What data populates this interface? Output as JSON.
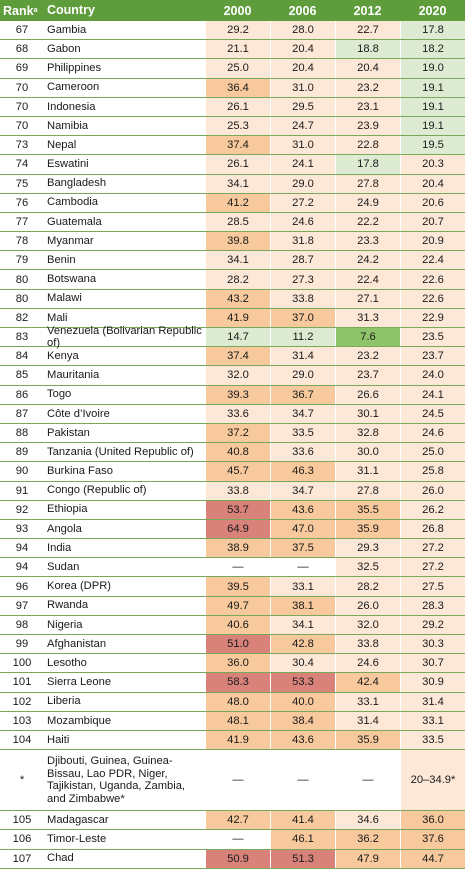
{
  "table": {
    "headers": {
      "rank": "Rank",
      "rank_sup": "a",
      "country": "Country",
      "years": [
        "2000",
        "2006",
        "2012",
        "2020"
      ]
    },
    "palette": {
      "header_bg": "#5e9c3c",
      "row_rule": "#78a85a",
      "very_low": "#8fc46a",
      "low": "#dcebd2",
      "moderate": "#fde8d8",
      "serious": "#f7c99c",
      "alarming": "#d9827a",
      "missing": "#ffffff"
    },
    "rows": [
      {
        "rank": "67",
        "country": "Gambia",
        "values": [
          "29.2",
          "28.0",
          "22.7",
          "17.8"
        ],
        "levels": [
          "moderate",
          "moderate",
          "moderate",
          "low"
        ]
      },
      {
        "rank": "68",
        "country": "Gabon",
        "values": [
          "21.1",
          "20.4",
          "18.8",
          "18.2"
        ],
        "levels": [
          "moderate",
          "moderate",
          "low",
          "low"
        ]
      },
      {
        "rank": "69",
        "country": "Philippines",
        "values": [
          "25.0",
          "20.4",
          "20.4",
          "19.0"
        ],
        "levels": [
          "moderate",
          "moderate",
          "moderate",
          "low"
        ]
      },
      {
        "rank": "70",
        "country": "Cameroon",
        "values": [
          "36.4",
          "31.0",
          "23.2",
          "19.1"
        ],
        "levels": [
          "serious",
          "moderate",
          "moderate",
          "low"
        ]
      },
      {
        "rank": "70",
        "country": "Indonesia",
        "values": [
          "26.1",
          "29.5",
          "23.1",
          "19.1"
        ],
        "levels": [
          "moderate",
          "moderate",
          "moderate",
          "low"
        ]
      },
      {
        "rank": "70",
        "country": "Namibia",
        "values": [
          "25.3",
          "24.7",
          "23.9",
          "19.1"
        ],
        "levels": [
          "moderate",
          "moderate",
          "moderate",
          "low"
        ]
      },
      {
        "rank": "73",
        "country": "Nepal",
        "values": [
          "37.4",
          "31.0",
          "22.8",
          "19.5"
        ],
        "levels": [
          "serious",
          "moderate",
          "moderate",
          "low"
        ]
      },
      {
        "rank": "74",
        "country": "Eswatini",
        "values": [
          "26.1",
          "24.1",
          "17.8",
          "20.3"
        ],
        "levels": [
          "moderate",
          "moderate",
          "low",
          "moderate"
        ]
      },
      {
        "rank": "75",
        "country": "Bangladesh",
        "values": [
          "34.1",
          "29.0",
          "27.8",
          "20.4"
        ],
        "levels": [
          "moderate",
          "moderate",
          "moderate",
          "moderate"
        ]
      },
      {
        "rank": "76",
        "country": "Cambodia",
        "values": [
          "41.2",
          "27.2",
          "24.9",
          "20.6"
        ],
        "levels": [
          "serious",
          "moderate",
          "moderate",
          "moderate"
        ]
      },
      {
        "rank": "77",
        "country": "Guatemala",
        "values": [
          "28.5",
          "24.6",
          "22.2",
          "20.7"
        ],
        "levels": [
          "moderate",
          "moderate",
          "moderate",
          "moderate"
        ]
      },
      {
        "rank": "78",
        "country": "Myanmar",
        "values": [
          "39.8",
          "31.8",
          "23.3",
          "20.9"
        ],
        "levels": [
          "serious",
          "moderate",
          "moderate",
          "moderate"
        ]
      },
      {
        "rank": "79",
        "country": "Benin",
        "values": [
          "34.1",
          "28.7",
          "24.2",
          "22.4"
        ],
        "levels": [
          "moderate",
          "moderate",
          "moderate",
          "moderate"
        ]
      },
      {
        "rank": "80",
        "country": "Botswana",
        "values": [
          "28.2",
          "27.3",
          "22.4",
          "22.6"
        ],
        "levels": [
          "moderate",
          "moderate",
          "moderate",
          "moderate"
        ]
      },
      {
        "rank": "80",
        "country": "Malawi",
        "values": [
          "43.2",
          "33.8",
          "27.1",
          "22.6"
        ],
        "levels": [
          "serious",
          "moderate",
          "moderate",
          "moderate"
        ]
      },
      {
        "rank": "82",
        "country": "Mali",
        "values": [
          "41.9",
          "37.0",
          "31.3",
          "22.9"
        ],
        "levels": [
          "serious",
          "serious",
          "moderate",
          "moderate"
        ]
      },
      {
        "rank": "83",
        "country": "Venezuela (Bolivarian Republic of)",
        "values": [
          "14.7",
          "11.2",
          "7.6",
          "23.5"
        ],
        "levels": [
          "low",
          "low",
          "very_low",
          "moderate"
        ]
      },
      {
        "rank": "84",
        "country": "Kenya",
        "values": [
          "37.4",
          "31.4",
          "23.2",
          "23.7"
        ],
        "levels": [
          "serious",
          "moderate",
          "moderate",
          "moderate"
        ]
      },
      {
        "rank": "85",
        "country": "Mauritania",
        "values": [
          "32.0",
          "29.0",
          "23.7",
          "24.0"
        ],
        "levels": [
          "moderate",
          "moderate",
          "moderate",
          "moderate"
        ]
      },
      {
        "rank": "86",
        "country": "Togo",
        "values": [
          "39.3",
          "36.7",
          "26.6",
          "24.1"
        ],
        "levels": [
          "serious",
          "serious",
          "moderate",
          "moderate"
        ]
      },
      {
        "rank": "87",
        "country": "Côte d’Ivoire",
        "values": [
          "33.6",
          "34.7",
          "30.1",
          "24.5"
        ],
        "levels": [
          "moderate",
          "moderate",
          "moderate",
          "moderate"
        ]
      },
      {
        "rank": "88",
        "country": "Pakistan",
        "values": [
          "37.2",
          "33.5",
          "32.8",
          "24.6"
        ],
        "levels": [
          "serious",
          "moderate",
          "moderate",
          "moderate"
        ]
      },
      {
        "rank": "89",
        "country": "Tanzania (United Republic of)",
        "values": [
          "40.8",
          "33.6",
          "30.0",
          "25.0"
        ],
        "levels": [
          "serious",
          "moderate",
          "moderate",
          "moderate"
        ]
      },
      {
        "rank": "90",
        "country": "Burkina Faso",
        "values": [
          "45.7",
          "46.3",
          "31.1",
          "25.8"
        ],
        "levels": [
          "serious",
          "serious",
          "moderate",
          "moderate"
        ]
      },
      {
        "rank": "91",
        "country": "Congo (Republic of)",
        "values": [
          "33.8",
          "34.7",
          "27.8",
          "26.0"
        ],
        "levels": [
          "moderate",
          "moderate",
          "moderate",
          "moderate"
        ]
      },
      {
        "rank": "92",
        "country": "Ethiopia",
        "values": [
          "53.7",
          "43.6",
          "35.5",
          "26.2"
        ],
        "levels": [
          "alarming",
          "serious",
          "serious",
          "moderate"
        ]
      },
      {
        "rank": "93",
        "country": "Angola",
        "values": [
          "64.9",
          "47.0",
          "35.9",
          "26.8"
        ],
        "levels": [
          "alarming",
          "serious",
          "serious",
          "moderate"
        ]
      },
      {
        "rank": "94",
        "country": "India",
        "values": [
          "38.9",
          "37.5",
          "29.3",
          "27.2"
        ],
        "levels": [
          "serious",
          "serious",
          "moderate",
          "moderate"
        ]
      },
      {
        "rank": "94",
        "country": "Sudan",
        "values": [
          "—",
          "—",
          "32.5",
          "27.2"
        ],
        "levels": [
          "missing",
          "missing",
          "moderate",
          "moderate"
        ]
      },
      {
        "rank": "96",
        "country": "Korea (DPR)",
        "values": [
          "39.5",
          "33.1",
          "28.2",
          "27.5"
        ],
        "levels": [
          "serious",
          "moderate",
          "moderate",
          "moderate"
        ]
      },
      {
        "rank": "97",
        "country": "Rwanda",
        "values": [
          "49.7",
          "38.1",
          "26.0",
          "28.3"
        ],
        "levels": [
          "serious",
          "serious",
          "moderate",
          "moderate"
        ]
      },
      {
        "rank": "98",
        "country": "Nigeria",
        "values": [
          "40.6",
          "34.1",
          "32.0",
          "29.2"
        ],
        "levels": [
          "serious",
          "moderate",
          "moderate",
          "moderate"
        ]
      },
      {
        "rank": "99",
        "country": "Afghanistan",
        "values": [
          "51.0",
          "42.8",
          "33.8",
          "30.3"
        ],
        "levels": [
          "alarming",
          "serious",
          "moderate",
          "moderate"
        ]
      },
      {
        "rank": "100",
        "country": "Lesotho",
        "values": [
          "36.0",
          "30.4",
          "24.6",
          "30.7"
        ],
        "levels": [
          "serious",
          "moderate",
          "moderate",
          "moderate"
        ]
      },
      {
        "rank": "101",
        "country": "Sierra Leone",
        "values": [
          "58.3",
          "53.3",
          "42.4",
          "30.9"
        ],
        "levels": [
          "alarming",
          "alarming",
          "serious",
          "moderate"
        ]
      },
      {
        "rank": "102",
        "country": "Liberia",
        "values": [
          "48.0",
          "40.0",
          "33.1",
          "31.4"
        ],
        "levels": [
          "serious",
          "serious",
          "moderate",
          "moderate"
        ]
      },
      {
        "rank": "103",
        "country": "Mozambique",
        "values": [
          "48.1",
          "38.4",
          "31.4",
          "33.1"
        ],
        "levels": [
          "serious",
          "serious",
          "moderate",
          "moderate"
        ]
      },
      {
        "rank": "104",
        "country": "Haiti",
        "values": [
          "41.9",
          "43.6",
          "35.9",
          "33.5"
        ],
        "levels": [
          "serious",
          "serious",
          "serious",
          "moderate"
        ]
      },
      {
        "rank": "*",
        "country": "Djibouti, Guinea, Guinea-Bissau, Lao PDR, Niger, Tajikistan, Uganda, Zambia, and Zimbabwe*",
        "values": [
          "—",
          "—",
          "—",
          "20–34.9*"
        ],
        "levels": [
          "missing",
          "missing",
          "missing",
          "moderate"
        ],
        "tall": true
      },
      {
        "rank": "105",
        "country": "Madagascar",
        "values": [
          "42.7",
          "41.4",
          "34.6",
          "36.0"
        ],
        "levels": [
          "serious",
          "serious",
          "moderate",
          "serious"
        ]
      },
      {
        "rank": "106",
        "country": "Timor-Leste",
        "values": [
          "—",
          "46.1",
          "36.2",
          "37.6"
        ],
        "levels": [
          "missing",
          "serious",
          "serious",
          "serious"
        ]
      },
      {
        "rank": "107",
        "country": "Chad",
        "values": [
          "50.9",
          "51.3",
          "47.9",
          "44.7"
        ],
        "levels": [
          "alarming",
          "alarming",
          "serious",
          "serious"
        ]
      }
    ]
  }
}
